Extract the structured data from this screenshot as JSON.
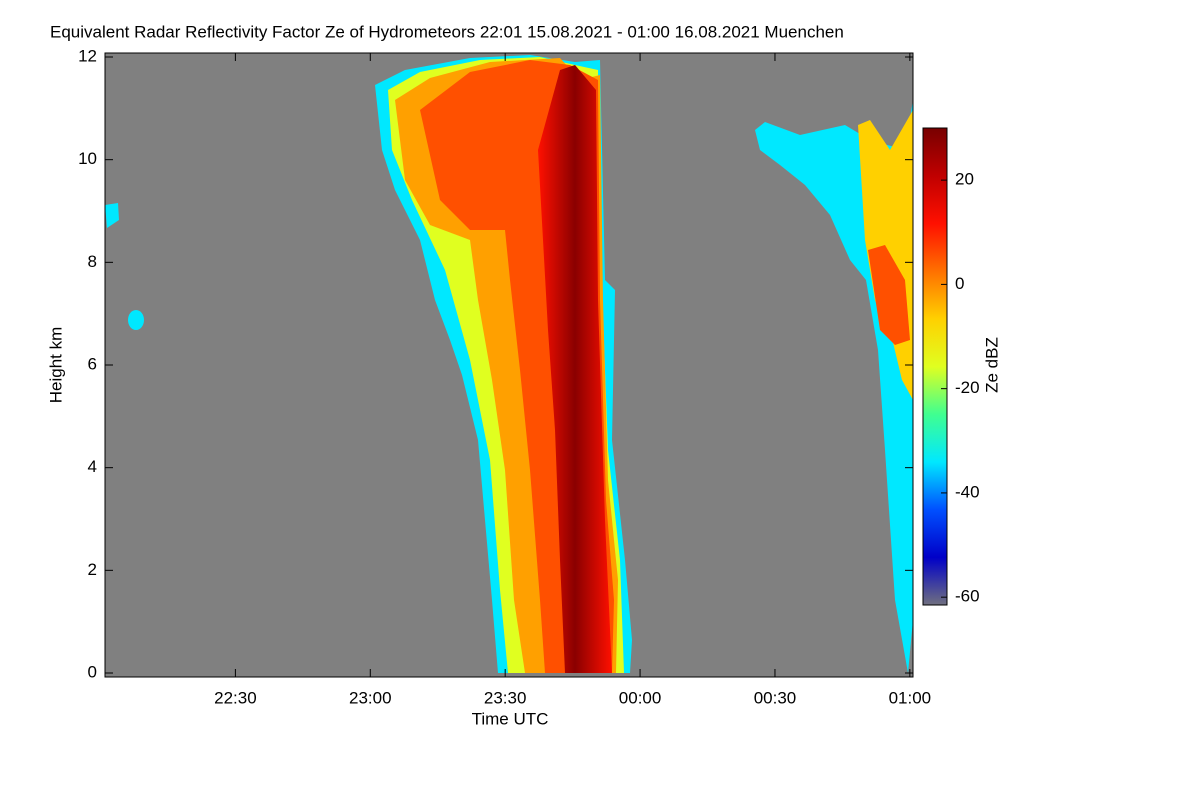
{
  "chart_data": {
    "type": "heatmap",
    "title": "Equivalent Radar Reflectivity Factor Ze of Hydrometeors   22:01 15.08.2021 - 01:00 16.08.2021 Muenchen",
    "xlabel": "Time UTC",
    "ylabel": "Height km",
    "colorbar_label": "Ze dBZ",
    "xlim": [
      1,
      180.7
    ],
    "xticks": [
      {
        "value": 30,
        "label": "22:30"
      },
      {
        "value": 60,
        "label": "23:00"
      },
      {
        "value": 90,
        "label": "23:30"
      },
      {
        "value": 120,
        "label": "00:00"
      },
      {
        "value": 150,
        "label": "00:30"
      },
      {
        "value": 180,
        "label": "01:00"
      }
    ],
    "ylim": [
      0,
      12
    ],
    "yticks": [
      0,
      2,
      4,
      6,
      8,
      10,
      12
    ],
    "clim": [
      -61.5,
      30
    ],
    "cticks": [
      -60,
      -40,
      -20,
      0,
      20
    ],
    "background": "#808080",
    "colormap": [
      "#707080",
      "#0000c8",
      "#0050ff",
      "#00e8ff",
      "#40ff90",
      "#e0ff20",
      "#ffd000",
      "#ff7000",
      "#ff1000",
      "#c00000",
      "#780000"
    ]
  }
}
